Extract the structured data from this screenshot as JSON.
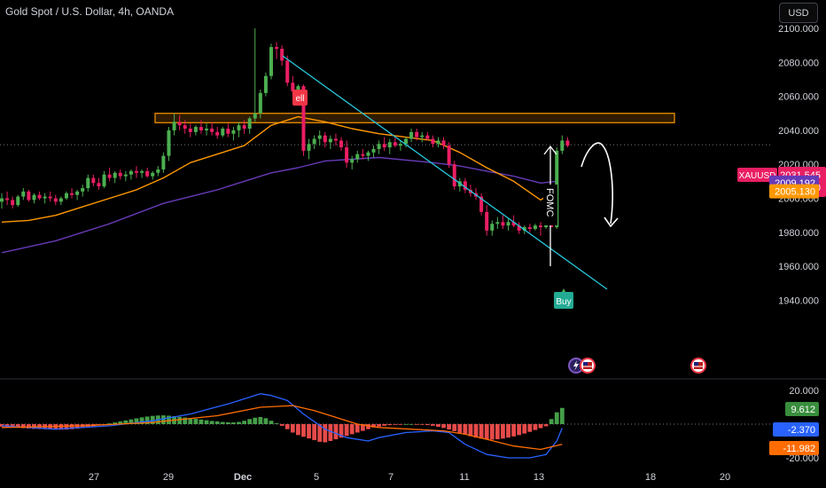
{
  "header": {
    "title": "Gold Spot / U.S. Dollar, 4h, OANDA",
    "currency_button": "USD"
  },
  "colors": {
    "up": "#089981",
    "down": "#f23645",
    "upBright": "#4caf50",
    "downBright": "#ef5350",
    "ema_fast": "#ff9800",
    "ema_slow": "#673ab7",
    "trendline": "#26c6da",
    "zone_border": "#ff9800",
    "macd_line": "#2962ff",
    "signal_line": "#ff6d00",
    "hist_pos": "#4caf50",
    "hist_neg": "#ff5252"
  },
  "chart_data": [
    {
      "type": "candlestick",
      "title": "Gold Spot / U.S. Dollar, 4h, OANDA",
      "symbol": "XAUUSD",
      "x_tick_labels": [
        "27",
        "29",
        "Dec",
        "5",
        "7",
        "11",
        "13",
        "18",
        "20"
      ],
      "y_tick_labels": [
        "2100.000",
        "2080.000",
        "2060.000",
        "2040.000",
        "2020.000",
        "2000.000",
        "1980.000",
        "1960.000",
        "1940.000"
      ],
      "ylim": [
        1936,
        2104
      ],
      "last_price": 2031.545,
      "countdown": "01:49:30",
      "ema_fast_value": 2005.13,
      "ema_slow_value": 2009.192,
      "ohlc": [
        [
          1998,
          2003,
          1994,
          2000
        ],
        [
          2000,
          2004,
          1996,
          1999
        ],
        [
          1999,
          2001,
          1994,
          1996
        ],
        [
          1996,
          2002,
          1995,
          2001
        ],
        [
          2001,
          2006,
          1999,
          2004
        ],
        [
          2004,
          2005,
          1998,
          1999
        ],
        [
          1999,
          2003,
          1997,
          2002
        ],
        [
          2002,
          2004,
          1999,
          2000
        ],
        [
          2000,
          2003,
          1997,
          2001
        ],
        [
          2001,
          2004,
          1998,
          2000
        ],
        [
          2000,
          2002,
          1996,
          1998
        ],
        [
          1998,
          2001,
          1996,
          2000
        ],
        [
          2000,
          2004,
          1999,
          2003
        ],
        [
          2003,
          2006,
          2000,
          2002
        ],
        [
          2002,
          2005,
          1999,
          2004
        ],
        [
          2004,
          2008,
          2001,
          2006
        ],
        [
          2006,
          2014,
          2004,
          2012
        ],
        [
          2012,
          2014,
          2007,
          2009
        ],
        [
          2009,
          2012,
          2005,
          2007
        ],
        [
          2007,
          2016,
          2006,
          2014
        ],
        [
          2014,
          2018,
          2010,
          2012
        ],
        [
          2012,
          2016,
          2009,
          2015
        ],
        [
          2015,
          2017,
          2011,
          2013
        ],
        [
          2013,
          2016,
          2010,
          2014
        ],
        [
          2014,
          2017,
          2011,
          2016
        ],
        [
          2016,
          2019,
          2012,
          2015
        ],
        [
          2015,
          2017,
          2012,
          2016
        ],
        [
          2016,
          2018,
          2012,
          2013
        ],
        [
          2013,
          2016,
          2011,
          2015
        ],
        [
          2015,
          2019,
          2013,
          2017
        ],
        [
          2017,
          2027,
          2015,
          2025
        ],
        [
          2025,
          2042,
          2022,
          2040
        ],
        [
          2040,
          2050,
          2037,
          2045
        ],
        [
          2045,
          2049,
          2040,
          2043
        ],
        [
          2043,
          2046,
          2038,
          2041
        ],
        [
          2041,
          2044,
          2036,
          2039
        ],
        [
          2039,
          2043,
          2037,
          2042
        ],
        [
          2042,
          2046,
          2038,
          2040
        ],
        [
          2040,
          2044,
          2037,
          2041
        ],
        [
          2041,
          2045,
          2037,
          2039
        ],
        [
          2039,
          2042,
          2035,
          2037
        ],
        [
          2037,
          2042,
          2036,
          2041
        ],
        [
          2041,
          2044,
          2036,
          2038
        ],
        [
          2038,
          2042,
          2034,
          2040
        ],
        [
          2040,
          2045,
          2036,
          2043
        ],
        [
          2043,
          2046,
          2038,
          2041
        ],
        [
          2041,
          2048,
          2038,
          2047
        ],
        [
          2047,
          2100,
          2045,
          2050
        ],
        [
          2050,
          2064,
          2047,
          2062
        ],
        [
          2062,
          2074,
          2060,
          2072
        ],
        [
          2072,
          2091,
          2070,
          2089
        ],
        [
          2089,
          2092,
          2082,
          2088
        ],
        [
          2088,
          2090,
          2078,
          2081
        ],
        [
          2081,
          2084,
          2066,
          2068
        ],
        [
          2068,
          2072,
          2061,
          2063
        ],
        [
          2063,
          2067,
          2060,
          2066
        ],
        [
          2066,
          2067,
          2025,
          2028
        ],
        [
          2028,
          2035,
          2023,
          2032
        ],
        [
          2032,
          2037,
          2029,
          2035
        ],
        [
          2035,
          2040,
          2031,
          2037
        ],
        [
          2037,
          2039,
          2030,
          2033
        ],
        [
          2033,
          2037,
          2029,
          2035
        ],
        [
          2035,
          2038,
          2031,
          2034
        ],
        [
          2034,
          2036,
          2028,
          2030
        ],
        [
          2030,
          2034,
          2018,
          2021
        ],
        [
          2021,
          2025,
          2017,
          2023
        ],
        [
          2023,
          2028,
          2021,
          2026
        ],
        [
          2026,
          2029,
          2023,
          2025
        ],
        [
          2025,
          2028,
          2022,
          2027
        ],
        [
          2027,
          2031,
          2024,
          2029
        ],
        [
          2029,
          2034,
          2026,
          2032
        ],
        [
          2032,
          2036,
          2028,
          2030
        ],
        [
          2030,
          2035,
          2026,
          2033
        ],
        [
          2033,
          2036,
          2030,
          2031
        ],
        [
          2031,
          2034,
          2028,
          2032
        ],
        [
          2032,
          2036,
          2030,
          2035
        ],
        [
          2035,
          2041,
          2033,
          2039
        ],
        [
          2039,
          2041,
          2034,
          2036
        ],
        [
          2036,
          2039,
          2033,
          2037
        ],
        [
          2037,
          2039,
          2034,
          2035
        ],
        [
          2035,
          2037,
          2030,
          2032
        ],
        [
          2032,
          2036,
          2030,
          2034
        ],
        [
          2034,
          2036,
          2029,
          2031
        ],
        [
          2031,
          2033,
          2018,
          2020
        ],
        [
          2020,
          2022,
          2005,
          2007
        ],
        [
          2007,
          2012,
          2004,
          2010
        ],
        [
          2010,
          2012,
          2003,
          2005
        ],
        [
          2005,
          2008,
          2001,
          2003
        ],
        [
          2003,
          2006,
          1999,
          2001
        ],
        [
          2001,
          2003,
          1990,
          1992
        ],
        [
          1992,
          1996,
          1978,
          1981
        ],
        [
          1981,
          1987,
          1978,
          1985
        ],
        [
          1985,
          1989,
          1982,
          1986
        ],
        [
          1986,
          1990,
          1982,
          1984
        ],
        [
          1984,
          1988,
          1981,
          1986
        ],
        [
          1986,
          1990,
          1983,
          1984
        ],
        [
          1984,
          1986,
          1979,
          1981
        ],
        [
          1981,
          1984,
          1979,
          1983
        ],
        [
          1983,
          1985,
          1980,
          1982
        ],
        [
          1982,
          1985,
          1981,
          1984
        ],
        [
          1984,
          1986,
          1978,
          1983
        ],
        [
          1983,
          1987,
          1982,
          1985
        ],
        [
          1985,
          1994,
          1983,
          1983
        ],
        [
          1983,
          2030,
          1982,
          2028
        ],
        [
          2028,
          2037,
          2026,
          2034
        ],
        [
          2034,
          2036,
          2030,
          2031
        ]
      ],
      "ema_fast": [
        [
          0,
          1986
        ],
        [
          5,
          1987
        ],
        [
          10,
          1990
        ],
        [
          15,
          1995
        ],
        [
          20,
          2000
        ],
        [
          25,
          2005
        ],
        [
          30,
          2012
        ],
        [
          35,
          2021
        ],
        [
          40,
          2026
        ],
        [
          45,
          2031
        ],
        [
          50,
          2043
        ],
        [
          55,
          2048
        ],
        [
          60,
          2045
        ],
        [
          65,
          2041
        ],
        [
          70,
          2038
        ],
        [
          75,
          2036
        ],
        [
          80,
          2034
        ],
        [
          85,
          2027
        ],
        [
          90,
          2018
        ],
        [
          95,
          2010
        ],
        [
          100,
          1999
        ],
        [
          103,
          2005
        ]
      ],
      "ema_slow": [
        [
          0,
          1968
        ],
        [
          10,
          1975
        ],
        [
          20,
          1985
        ],
        [
          30,
          1997
        ],
        [
          40,
          2005
        ],
        [
          50,
          2015
        ],
        [
          55,
          2018
        ],
        [
          60,
          2022
        ],
        [
          70,
          2024
        ],
        [
          80,
          2021
        ],
        [
          85,
          2019
        ],
        [
          90,
          2016
        ],
        [
          95,
          2013
        ],
        [
          100,
          2009
        ],
        [
          103,
          2010
        ]
      ],
      "resistance_zone": [
        2044.5,
        2050
      ],
      "annotations": {
        "sell_label": "ell",
        "buy_label": "Buy",
        "fomc_label": "FOMC"
      }
    },
    {
      "type": "macd",
      "y_tick_labels": [
        "20.000",
        "-20.000"
      ],
      "ylim": [
        -22,
        22
      ],
      "macd_value": -2.37,
      "signal_value": -11.982,
      "hist_value": 9.612,
      "histogram": [
        -1.5,
        -1.7,
        -2.0,
        -2.2,
        -2.4,
        -2.6,
        -2.8,
        -2.9,
        -3.0,
        -3.1,
        -3.2,
        -3.3,
        -3.2,
        -3.0,
        -2.7,
        -2.3,
        -1.8,
        -1.3,
        -0.7,
        -0.2,
        0.4,
        1.0,
        1.6,
        2.2,
        2.8,
        3.4,
        4.0,
        4.5,
        4.9,
        5.1,
        5.2,
        5.0,
        4.7,
        4.3,
        3.9,
        3.5,
        3.1,
        2.7,
        2.3,
        1.9,
        1.6,
        1.3,
        1.1,
        1.0,
        1.3,
        2.0,
        3.0,
        3.8,
        4.2,
        3.5,
        2.0,
        0.5,
        -1.0,
        -3.0,
        -5.0,
        -6.5,
        -7.5,
        -8.5,
        -9.5,
        -10.5,
        -10.8,
        -10.0,
        -9.0,
        -8.0,
        -7.0,
        -6.0,
        -5.0,
        -4.0,
        -3.0,
        -2.0,
        -1.5,
        -1.0,
        -0.6,
        -0.3,
        -0.1,
        0.0,
        0.0,
        -0.1,
        -0.3,
        -0.6,
        -1.0,
        -1.6,
        -2.3,
        -3.2,
        -4.2,
        -5.2,
        -6.2,
        -7.2,
        -8.0,
        -8.6,
        -9.0,
        -9.2,
        -9.0,
        -8.6,
        -8.0,
        -7.3,
        -6.5,
        -5.6,
        -4.6,
        -3.5,
        -2.4,
        -1.3,
        3.0,
        7.0,
        9.6
      ],
      "macd_line": [
        [
          0,
          -1
        ],
        [
          10,
          -3
        ],
        [
          20,
          -1
        ],
        [
          28,
          2
        ],
        [
          35,
          6
        ],
        [
          42,
          12
        ],
        [
          46,
          16
        ],
        [
          48,
          18
        ],
        [
          50,
          17
        ],
        [
          53,
          14
        ],
        [
          56,
          6
        ],
        [
          60,
          -3
        ],
        [
          64,
          -8
        ],
        [
          68,
          -10
        ],
        [
          70,
          -8
        ],
        [
          75,
          -5
        ],
        [
          80,
          -4
        ],
        [
          83,
          -5
        ],
        [
          86,
          -12
        ],
        [
          90,
          -18
        ],
        [
          94,
          -20
        ],
        [
          98,
          -20
        ],
        [
          101,
          -18
        ],
        [
          103,
          -10
        ],
        [
          104,
          -2.37
        ]
      ],
      "signal_line": [
        [
          0,
          -2
        ],
        [
          15,
          -1
        ],
        [
          28,
          1
        ],
        [
          40,
          5
        ],
        [
          48,
          10
        ],
        [
          54,
          11
        ],
        [
          58,
          8
        ],
        [
          62,
          4
        ],
        [
          66,
          0
        ],
        [
          70,
          -2
        ],
        [
          76,
          -3
        ],
        [
          82,
          -4
        ],
        [
          86,
          -6
        ],
        [
          90,
          -9
        ],
        [
          95,
          -13
        ],
        [
          100,
          -15
        ],
        [
          104,
          -11.982
        ]
      ]
    }
  ],
  "price_labels": {
    "xauusd": "XAUUSD",
    "last": "2031.545",
    "countdown": "01:49:30",
    "ema_slow": "2009.192",
    "ema_fast": "2005.130",
    "hist": "9.612",
    "macd": "-2.370",
    "signal": "-11.982"
  }
}
